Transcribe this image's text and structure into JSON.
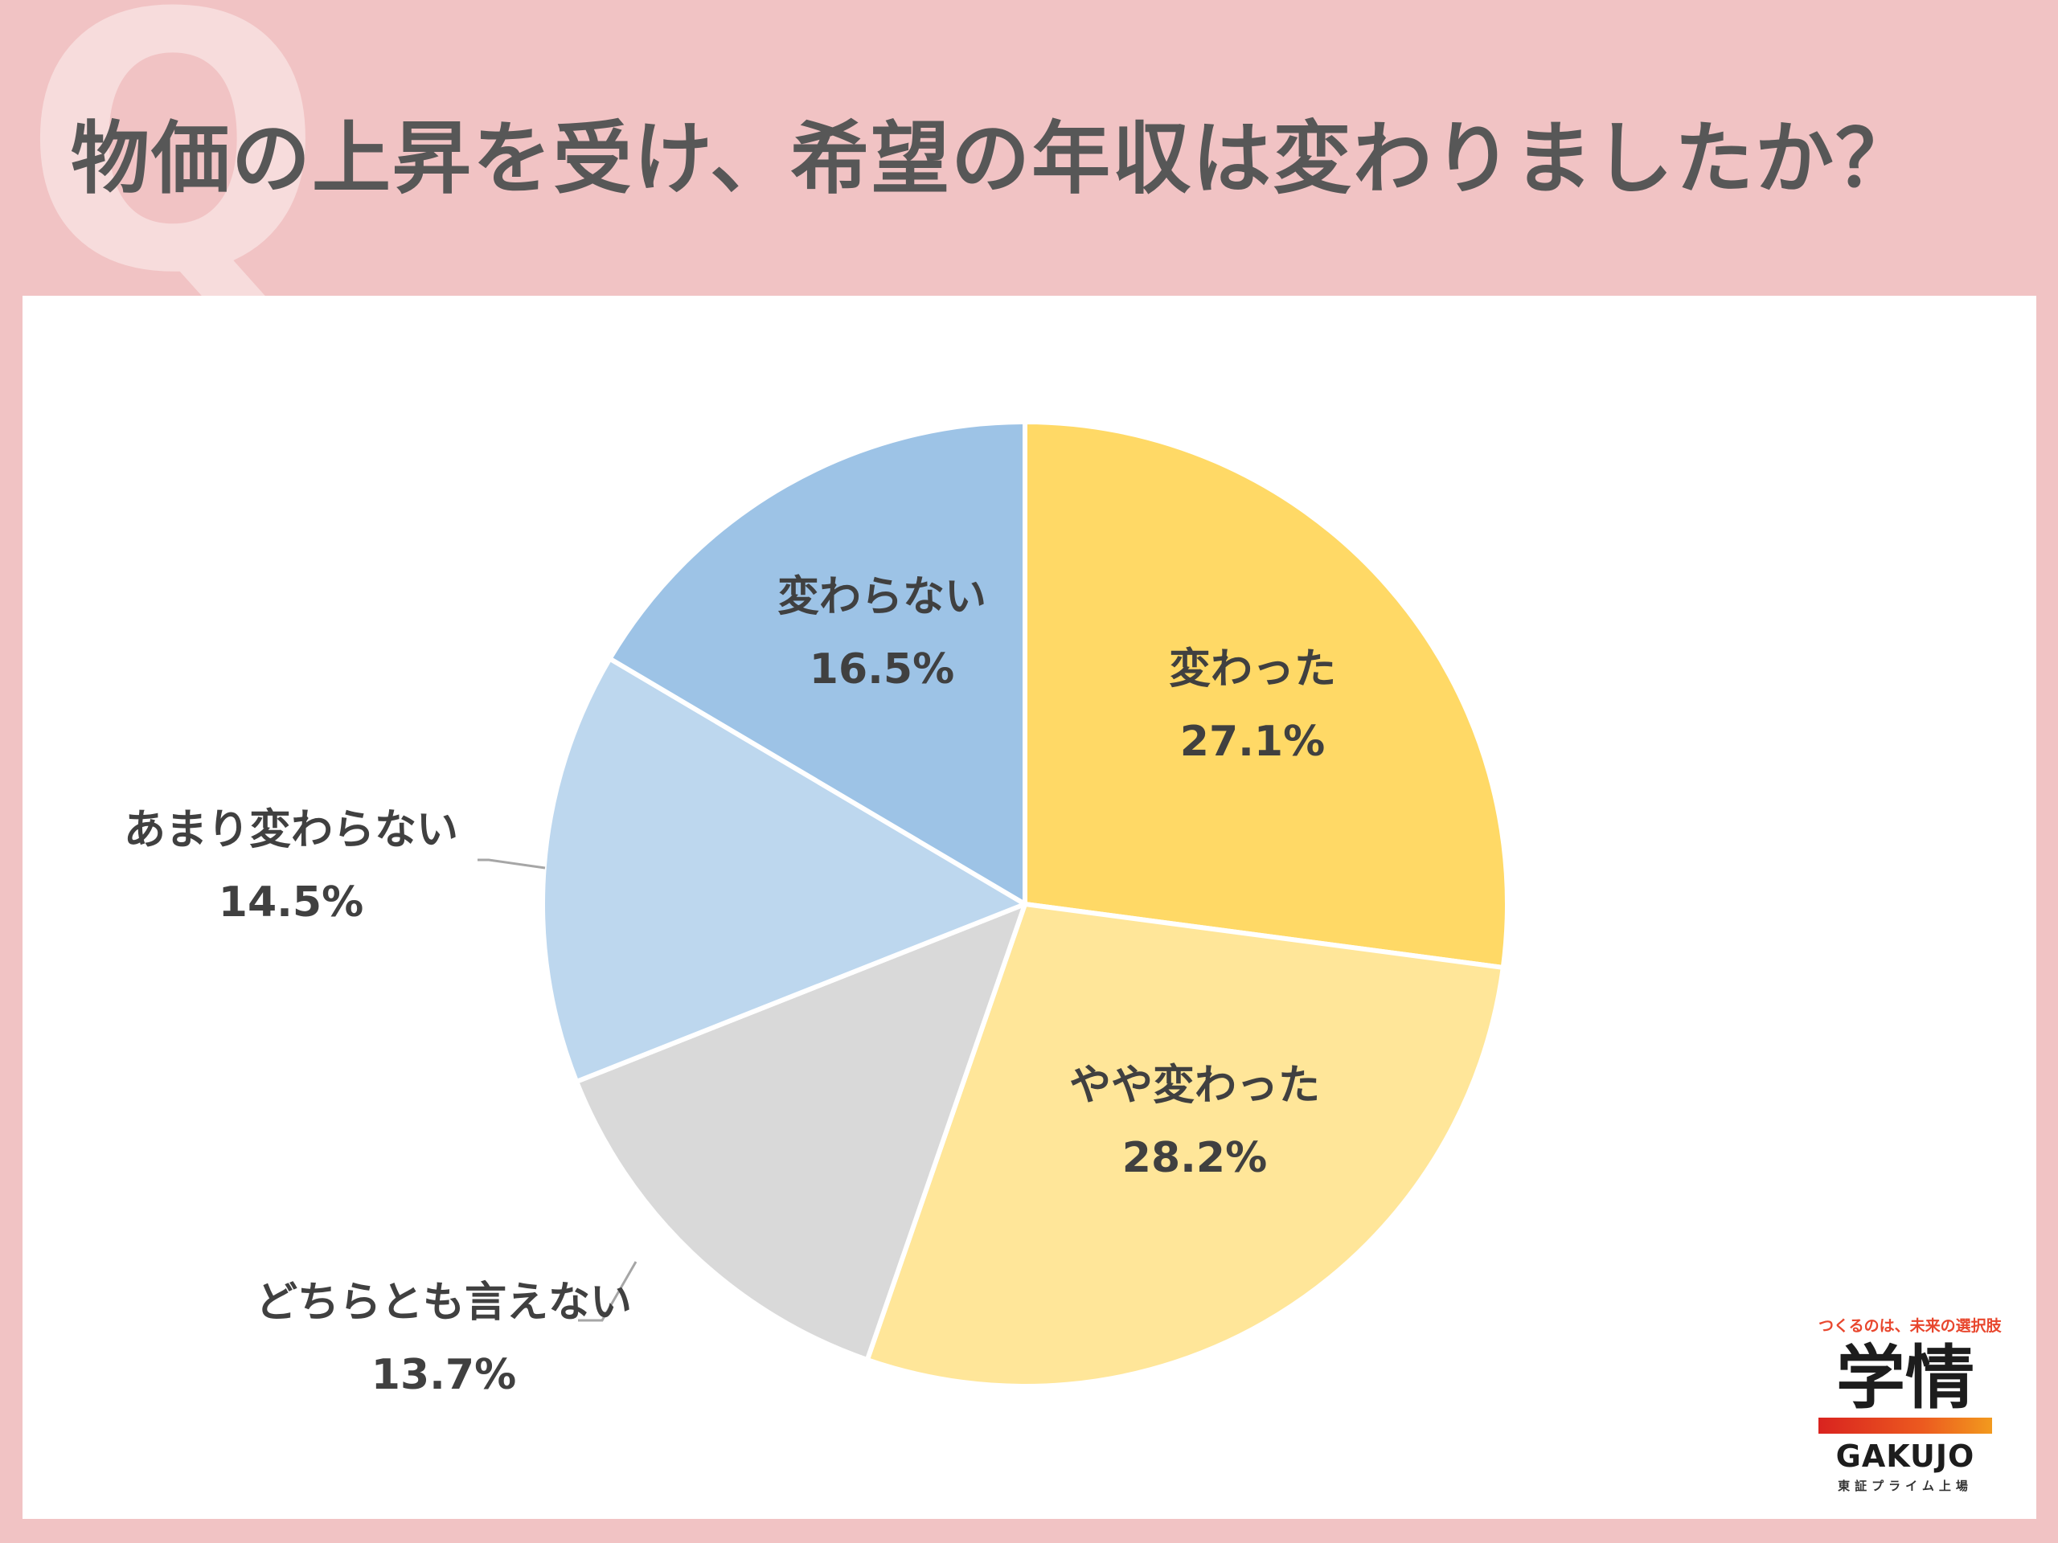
{
  "header": {
    "badge": "Q",
    "title": "物価の上昇を受け、希望の年収は変わりましたか？"
  },
  "chart_data": {
    "type": "pie",
    "title": "物価の上昇を受け、希望の年収は変わりましたか？",
    "unit": "%",
    "slices": [
      {
        "label": "変わった",
        "value": 27.1,
        "display": "27.1%",
        "color": "#ffd966"
      },
      {
        "label": "やや変わった",
        "value": 28.2,
        "display": "28.2%",
        "color": "#ffe699"
      },
      {
        "label": "どちらとも言えない",
        "value": 13.7,
        "display": "13.7%",
        "color": "#d9d9d9"
      },
      {
        "label": "あまり変わらない",
        "value": 14.5,
        "display": "14.5%",
        "color": "#bdd7ee"
      },
      {
        "label": "変わらない",
        "value": 16.5,
        "display": "16.5%",
        "color": "#9dc3e6"
      }
    ],
    "start": "12 o'clock",
    "direction": "clockwise"
  },
  "logo": {
    "tagline": "つくるのは、未来の選択肢",
    "kanji": "学情",
    "roman": "GAKUJO",
    "sub": "東証プライム上場"
  }
}
